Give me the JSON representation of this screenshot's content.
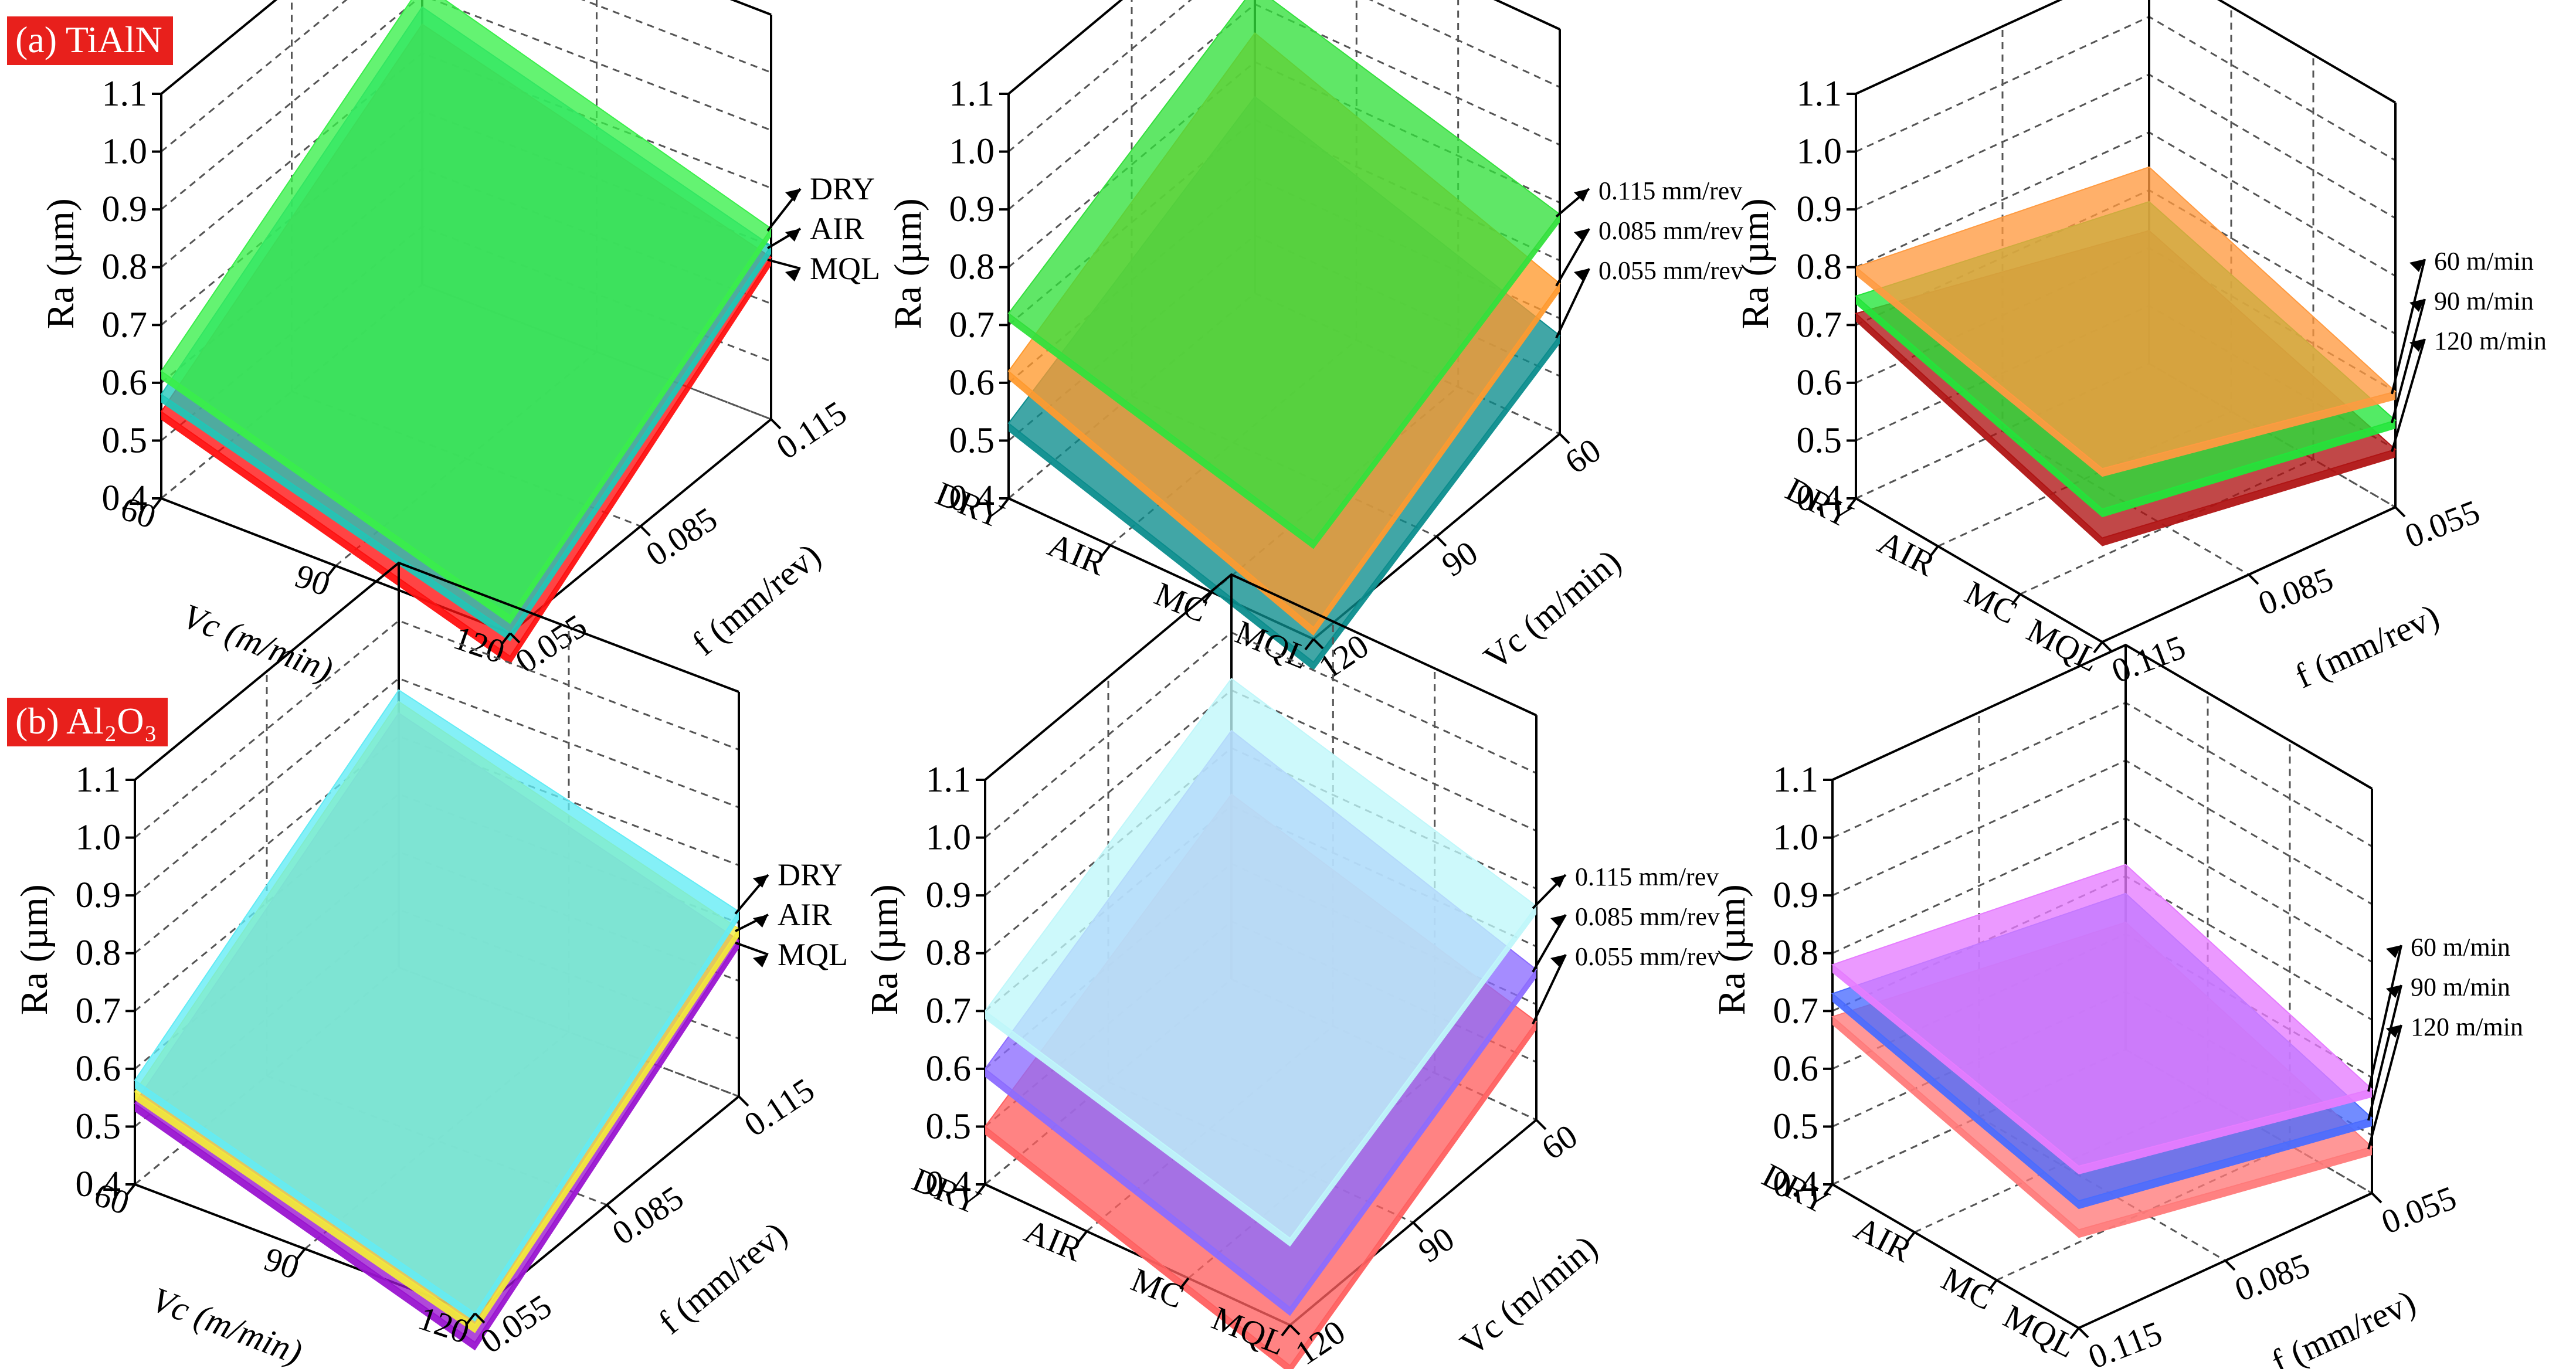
{
  "colors": {
    "badge": "#e8201c",
    "a_dry": "#39ef4a",
    "a_air": "#1ec8b8",
    "a_mql": "#ff1010",
    "a_f115": "#33e03c",
    "a_f085": "#ff9a2e",
    "a_f055": "#0b8d8d",
    "a_v60": "#ff9a40",
    "a_v90": "#22e63a",
    "a_v120": "#b01414",
    "b_dry": "#62ecf5",
    "b_air": "#f2ea3a",
    "b_mql": "#9a14d0",
    "b_f115": "#bff7fa",
    "b_f085": "#8c6cff",
    "b_f055": "#ff6060",
    "b_v60": "#e67cff",
    "b_v90": "#4a6cff",
    "b_v120": "#ff7a7a"
  },
  "panels": [
    {
      "label": "(a) TiAlN"
    },
    {
      "label": "(b) Al₂O₃"
    }
  ],
  "chart_data": [
    {
      "type": "surface3d",
      "panel": "(a) TiAlN",
      "view": "Ra vs Vc and f",
      "zlabel": "Ra (µm)",
      "zlim": [
        0.4,
        1.1
      ],
      "zticks": [
        "1.1",
        "1.0",
        "0.9",
        "0.8",
        "0.7",
        "0.6",
        "0.5",
        "0.4"
      ],
      "xlabel": "Vc (m/min)",
      "xticks": [
        "60",
        "90",
        "120"
      ],
      "ylabel": "f (mm/rev)",
      "yticks": [
        "0.115",
        "0.085",
        "0.055"
      ],
      "series": [
        {
          "name": "DRY",
          "corner_values": [
            0.62,
            0.92,
            0.43,
            0.73
          ]
        },
        {
          "name": "AIR",
          "corner_values": [
            0.58,
            0.88,
            0.4,
            0.7
          ]
        },
        {
          "name": "MQL",
          "corner_values": [
            0.55,
            0.85,
            0.36,
            0.68
          ]
        }
      ]
    },
    {
      "type": "surface3d",
      "panel": "(a) TiAlN",
      "view": "Ra vs condition and Vc",
      "zlabel": "Ra (µm)",
      "zlim": [
        0.4,
        1.1
      ],
      "zticks": [
        "1.1",
        "1.0",
        "0.9",
        "0.8",
        "0.7",
        "0.6",
        "0.5",
        "0.4"
      ],
      "xlabel": "",
      "xticks": [
        "DRY",
        "AIR",
        "MC",
        "MQL"
      ],
      "ylabel": "Vc (m/min)",
      "yticks": [
        "60",
        "90",
        "120"
      ],
      "series": [
        {
          "name": "0.115 mm/rev",
          "corner_values": [
            0.72,
            0.93,
            0.57,
            0.78
          ]
        },
        {
          "name": "0.085 mm/rev",
          "corner_values": [
            0.62,
            0.85,
            0.42,
            0.66
          ]
        },
        {
          "name": "0.055 mm/rev",
          "corner_values": [
            0.53,
            0.74,
            0.36,
            0.57
          ]
        }
      ]
    },
    {
      "type": "surface3d",
      "panel": "(a) TiAlN",
      "view": "Ra vs condition and f",
      "zlabel": "Ra (µm)",
      "zlim": [
        0.4,
        1.1
      ],
      "zticks": [
        "1.1",
        "1.0",
        "0.9",
        "0.8",
        "0.7",
        "0.6",
        "0.5",
        "0.4"
      ],
      "xlabel": "",
      "xticks": [
        "DRY",
        "AIR",
        "MC",
        "MQL"
      ],
      "ylabel": "f (mm/rev)",
      "yticks": [
        "0.055",
        "0.085",
        "0.115"
      ],
      "series": [
        {
          "name": "60 m/min",
          "corner_values": [
            0.8,
            0.74,
            0.7,
            0.6
          ]
        },
        {
          "name": "90 m/min",
          "corner_values": [
            0.75,
            0.68,
            0.63,
            0.55
          ]
        },
        {
          "name": "120 m/min",
          "corner_values": [
            0.72,
            0.63,
            0.58,
            0.5
          ]
        }
      ]
    },
    {
      "type": "surface3d",
      "panel": "(b) Al₂O₃",
      "view": "Ra vs Vc and f",
      "zlabel": "Ra (µm)",
      "zlim": [
        0.4,
        1.1
      ],
      "zticks": [
        "1.1",
        "1.0",
        "0.9",
        "0.8",
        "0.7",
        "0.6",
        "0.5",
        "0.4"
      ],
      "xlabel": "Vc (m/min)",
      "xticks": [
        "60",
        "90",
        "120"
      ],
      "ylabel": "f (mm/rev)",
      "yticks": [
        "0.115",
        "0.085",
        "0.055"
      ],
      "series": [
        {
          "name": "DRY",
          "corner_values": [
            0.58,
            0.88,
            0.4,
            0.72
          ]
        },
        {
          "name": "AIR",
          "corner_values": [
            0.56,
            0.86,
            0.38,
            0.69
          ]
        },
        {
          "name": "MQL",
          "corner_values": [
            0.54,
            0.84,
            0.35,
            0.67
          ]
        }
      ]
    },
    {
      "type": "surface3d",
      "panel": "(b) Al₂O₃",
      "view": "Ra vs condition and Vc",
      "zlabel": "Ra (µm)",
      "zlim": [
        0.4,
        1.1
      ],
      "zticks": [
        "1.1",
        "1.0",
        "0.9",
        "0.8",
        "0.7",
        "0.6",
        "0.5",
        "0.4"
      ],
      "xlabel": "",
      "xticks": [
        "DRY",
        "AIR",
        "MC",
        "MQL"
      ],
      "ylabel": "Vc (m/min)",
      "yticks": [
        "60",
        "90",
        "120"
      ],
      "series": [
        {
          "name": "0.115 mm/rev",
          "corner_values": [
            0.7,
            0.92,
            0.55,
            0.77
          ]
        },
        {
          "name": "0.085 mm/rev",
          "corner_values": [
            0.6,
            0.83,
            0.43,
            0.66
          ]
        },
        {
          "name": "0.055 mm/rev",
          "corner_values": [
            0.5,
            0.72,
            0.33,
            0.57
          ]
        }
      ]
    },
    {
      "type": "surface3d",
      "panel": "(b) Al₂O₃",
      "view": "Ra vs condition and f",
      "zlabel": "Ra (µm)",
      "zlim": [
        0.4,
        1.1
      ],
      "zticks": [
        "1.1",
        "1.0",
        "0.9",
        "0.8",
        "0.7",
        "0.6",
        "0.5",
        "0.4"
      ],
      "xlabel": "",
      "xticks": [
        "DRY",
        "AIR",
        "MC",
        "MQL"
      ],
      "ylabel": "f (mm/rev)",
      "yticks": [
        "0.055",
        "0.085",
        "0.115"
      ],
      "series": [
        {
          "name": "60 m/min",
          "corner_values": [
            0.78,
            0.72,
            0.68,
            0.58
          ]
        },
        {
          "name": "90 m/min",
          "corner_values": [
            0.73,
            0.67,
            0.62,
            0.53
          ]
        },
        {
          "name": "120 m/min",
          "corner_values": [
            0.69,
            0.62,
            0.57,
            0.48
          ]
        }
      ]
    }
  ]
}
